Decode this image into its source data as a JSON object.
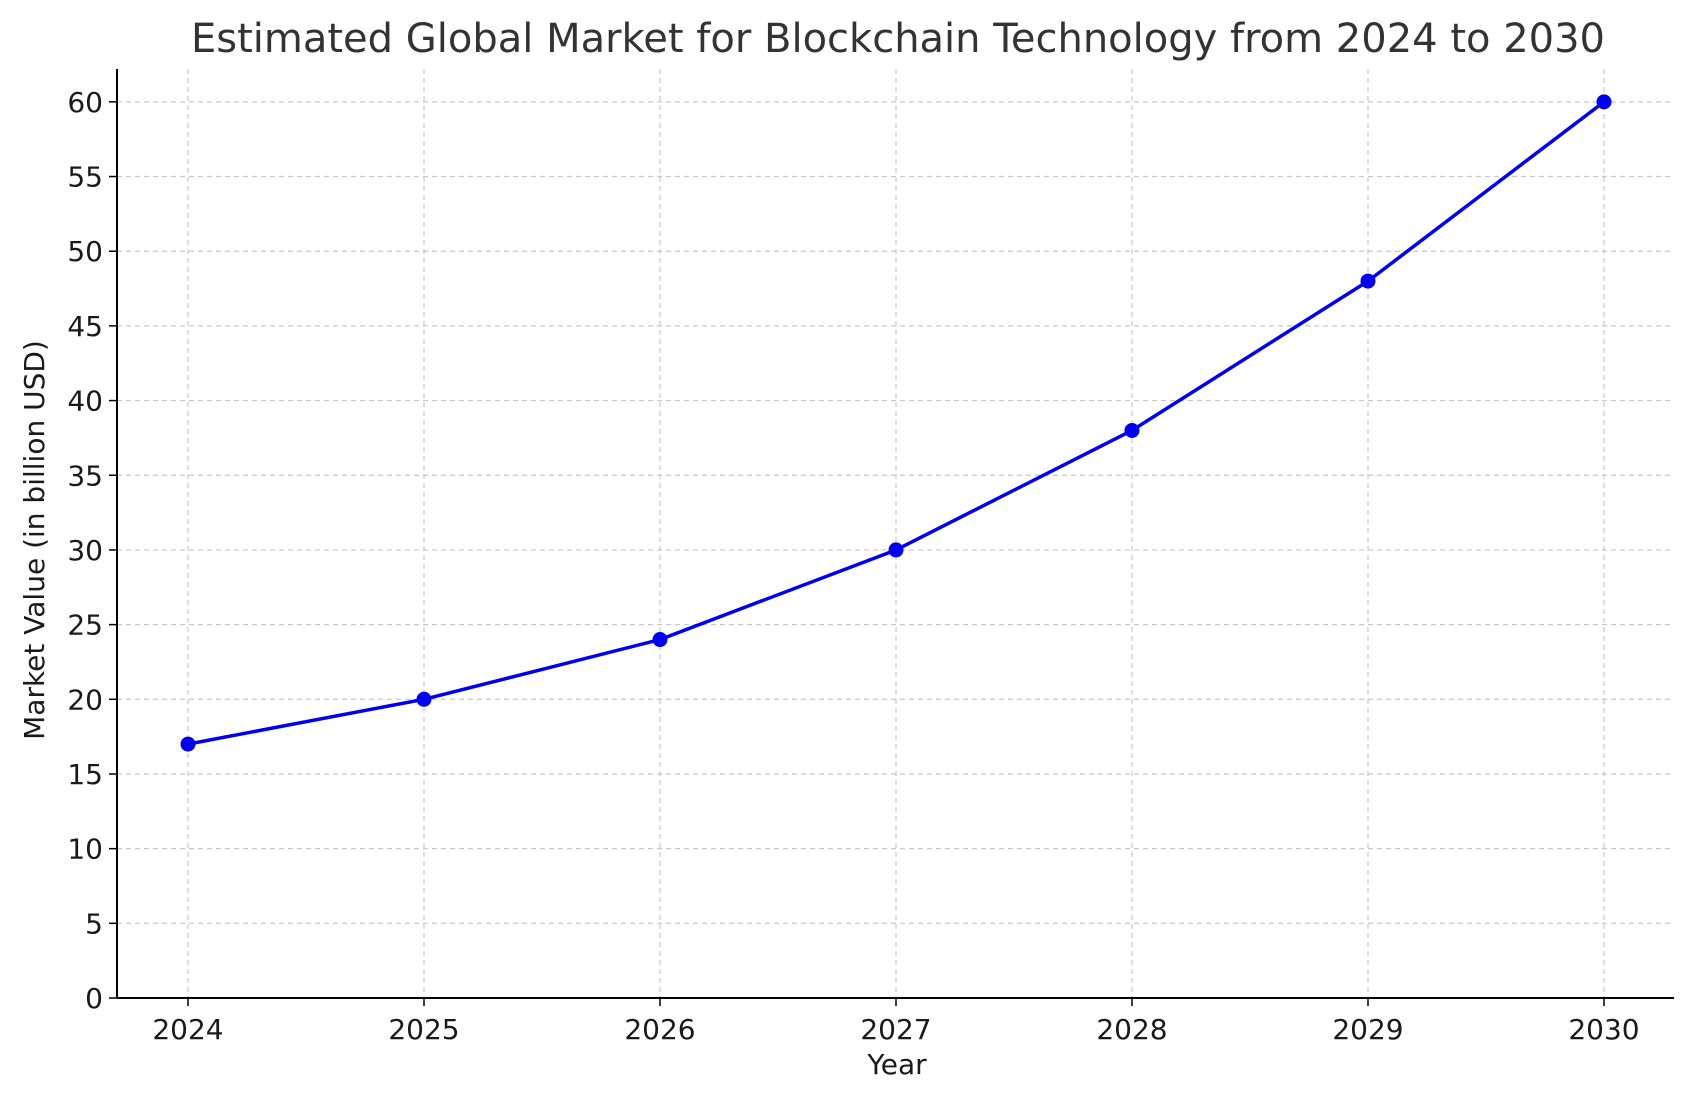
{
  "colors": {
    "series": "#0000ee",
    "grid": "#c8c8c8",
    "axis": "#000000"
  },
  "chart_data": {
    "type": "line",
    "title": "Estimated Global Market for Blockchain Technology from 2024 to 2030",
    "xlabel": "Year",
    "ylabel": "Market Value (in billion USD)",
    "categories": [
      "2024",
      "2025",
      "2026",
      "2027",
      "2028",
      "2029",
      "2030"
    ],
    "series": [
      {
        "name": "Market Value",
        "values": [
          17,
          20,
          24,
          30,
          38,
          48,
          60
        ],
        "marker": "circle"
      }
    ],
    "ylim": [
      0,
      62.2
    ],
    "yticks": [
      0,
      5,
      10,
      15,
      20,
      25,
      30,
      35,
      40,
      45,
      50,
      55,
      60
    ],
    "grid": true,
    "legend": "none"
  }
}
